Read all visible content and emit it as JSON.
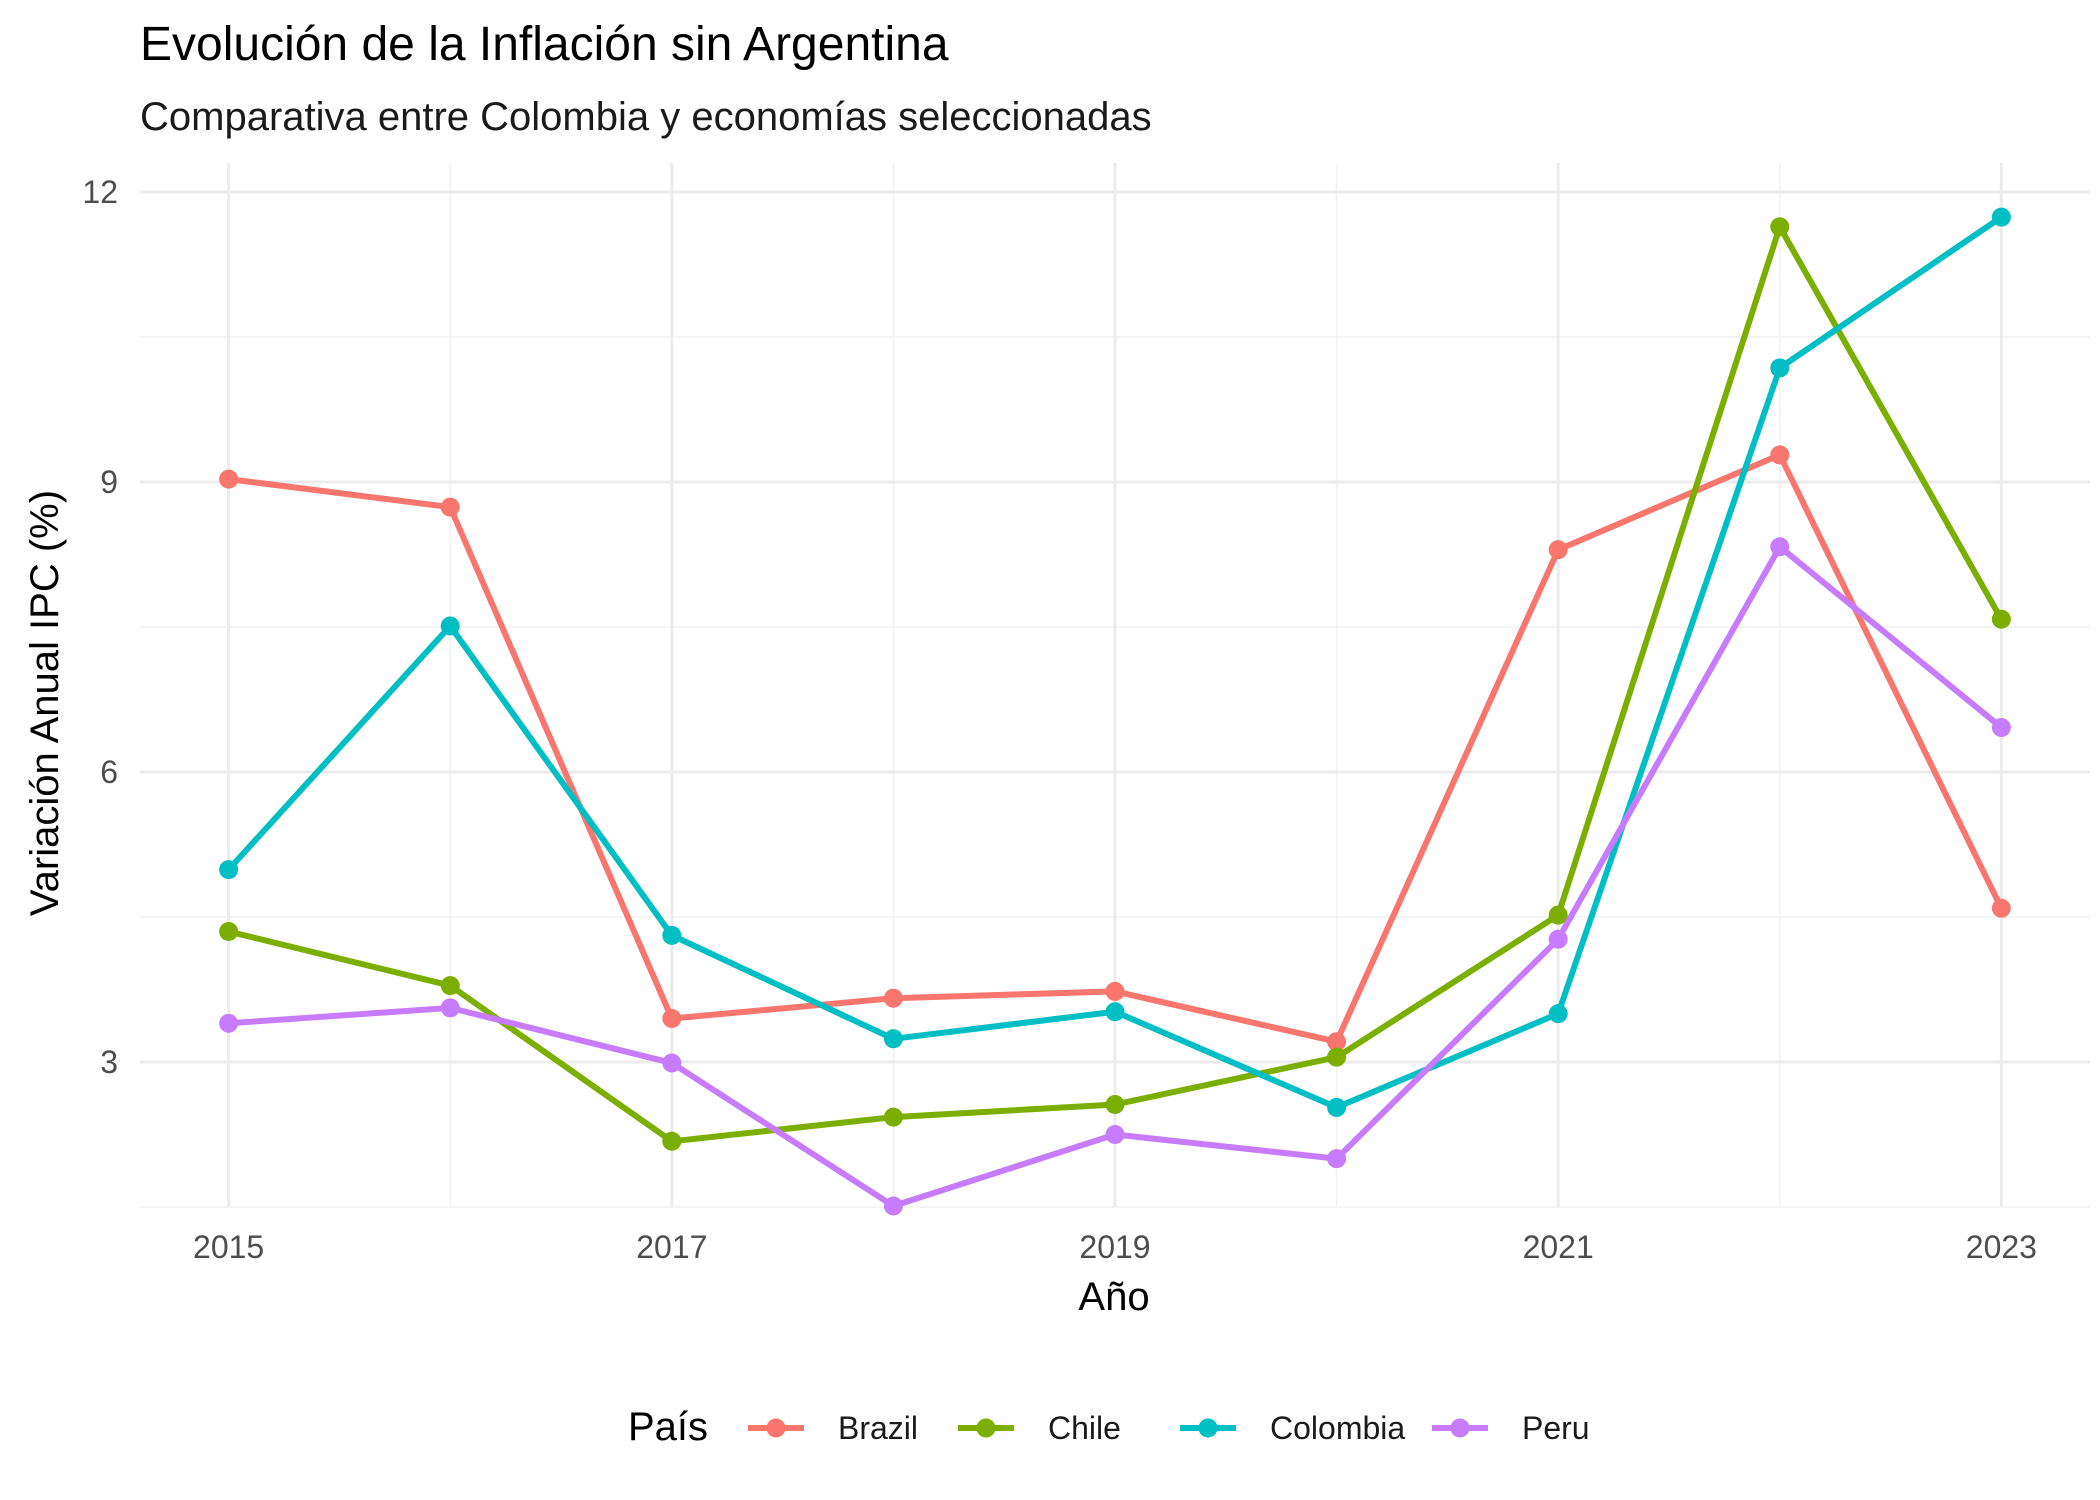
{
  "chart_data": {
    "type": "line",
    "title": "Evolución de la Inflación sin Argentina",
    "subtitle": "Comparativa entre Colombia y economías seleccionadas",
    "xlabel": "Año",
    "ylabel": "Variación Anual IPC (%)",
    "x": [
      2015,
      2016,
      2017,
      2018,
      2019,
      2020,
      2021,
      2022,
      2023
    ],
    "xticks": [
      2015,
      2017,
      2019,
      2021,
      2023
    ],
    "xtick_labels": [
      "2015",
      "2017",
      "2019",
      "2021",
      "2023"
    ],
    "yticks": [
      3,
      6,
      9,
      12
    ],
    "ytick_labels": [
      "3",
      "6",
      "9",
      "12"
    ],
    "xlim": [
      2014.6,
      2023.4
    ],
    "ylim": [
      1.5,
      12.3
    ],
    "grid": true,
    "legend": {
      "title": "País",
      "position": "bottom"
    },
    "series": [
      {
        "name": "Brazil",
        "color": "#F8766D",
        "values": [
          9.03,
          8.74,
          3.45,
          3.66,
          3.73,
          3.21,
          8.3,
          9.28,
          4.59
        ]
      },
      {
        "name": "Chile",
        "color": "#7CAE00",
        "values": [
          4.35,
          3.79,
          2.18,
          2.43,
          2.56,
          3.05,
          4.52,
          11.64,
          7.58
        ]
      },
      {
        "name": "Colombia",
        "color": "#00BFC4",
        "values": [
          4.99,
          7.51,
          4.31,
          3.24,
          3.52,
          2.53,
          3.5,
          10.18,
          11.74
        ]
      },
      {
        "name": "Peru",
        "color": "#C77CFF",
        "values": [
          3.4,
          3.56,
          2.99,
          1.51,
          2.25,
          2.0,
          4.27,
          8.33,
          6.46
        ]
      }
    ]
  }
}
